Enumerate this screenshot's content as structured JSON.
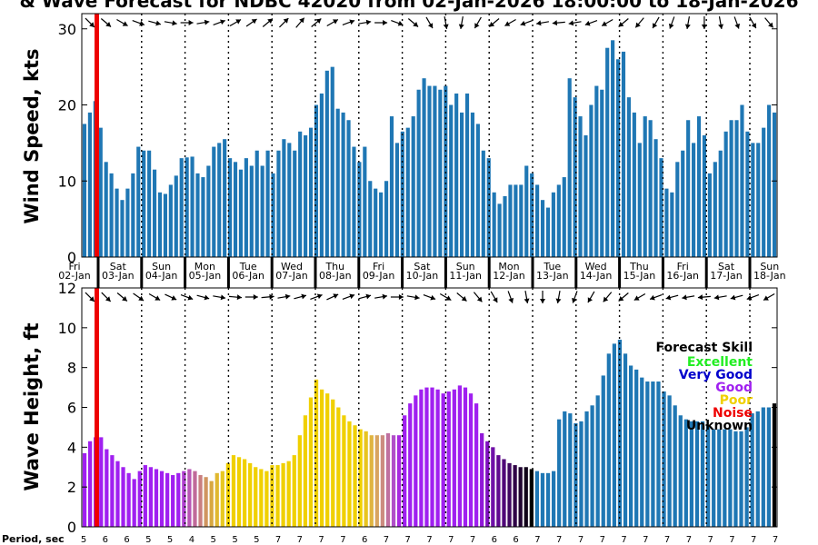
{
  "title": "& Wave Forecast for NDBC 42020 from 02-Jan-2026 18:00:00 to 18-Jan-2026",
  "period_label": "Period, sec",
  "legend": {
    "title": "Forecast Skill",
    "items": [
      {
        "label": "Excellent",
        "color": "#22ee22"
      },
      {
        "label": "Very Good",
        "color": "#0000cc"
      },
      {
        "label": "Good",
        "color": "#a020f0"
      },
      {
        "label": "Poor",
        "color": "#f0d000"
      },
      {
        "label": "Noise",
        "color": "#ee0000"
      },
      {
        "label": "Unknown",
        "color": "#000000"
      }
    ]
  },
  "chart_data": [
    {
      "type": "bar",
      "ylabel": "Wind Speed, kts",
      "ylim": [
        0,
        32
      ],
      "yticks": [
        0,
        10,
        20,
        30
      ],
      "bar_color": "#1f77b4",
      "values": [
        17.5,
        19,
        20.5,
        17,
        12.5,
        11,
        9,
        7.5,
        9,
        11,
        14.5,
        14,
        14,
        11.5,
        8.5,
        8.3,
        9.5,
        10.7,
        13,
        13.1,
        13.2,
        11,
        10.5,
        12,
        14.5,
        15,
        15.5,
        13,
        12.5,
        11.5,
        13,
        12,
        14,
        12,
        14,
        11,
        14,
        15.5,
        15,
        14,
        16.5,
        16,
        17,
        20,
        21.5,
        24.5,
        25,
        19.5,
        19,
        18,
        14.5,
        12.5,
        14.5,
        10,
        9,
        8.5,
        10,
        18.5,
        15,
        16.5,
        17,
        18.5,
        22,
        23.5,
        22.5,
        22.5,
        22,
        22.5,
        20,
        21.5,
        19,
        21.5,
        19,
        17.5,
        14,
        13,
        8.5,
        7,
        8,
        9.5,
        9.5,
        9.5,
        12,
        11,
        9.5,
        7.5,
        6.5,
        8.5,
        9.5,
        10.5,
        23.5,
        21,
        18.5,
        16,
        20,
        22.5,
        22,
        27.5,
        28.5,
        26,
        27,
        21,
        19,
        15,
        18.5,
        18,
        15.5,
        13,
        9,
        8.5,
        12.5,
        14,
        18,
        15,
        18.5,
        16,
        11,
        12.5,
        14,
        16.5,
        18,
        18,
        20,
        16.5,
        15,
        15,
        17,
        20,
        19
      ]
    },
    {
      "type": "bar",
      "ylabel": "Wave Height, ft",
      "ylim": [
        0,
        12
      ],
      "yticks": [
        0,
        2,
        4,
        6,
        8,
        10,
        12
      ],
      "values": [
        3.7,
        4.3,
        4.5,
        4.5,
        3.9,
        3.6,
        3.3,
        3,
        2.7,
        2.4,
        2.8,
        3.1,
        3,
        2.9,
        2.8,
        2.7,
        2.6,
        2.7,
        2.8,
        2.9,
        2.8,
        2.6,
        2.5,
        2.3,
        2.7,
        2.8,
        3.2,
        3.6,
        3.5,
        3.4,
        3.2,
        3,
        2.9,
        2.8,
        3.1,
        3.1,
        3.2,
        3.3,
        3.6,
        4.6,
        5.6,
        6.5,
        7.4,
        6.9,
        6.7,
        6.4,
        6,
        5.6,
        5.3,
        5.1,
        4.9,
        4.8,
        4.6,
        4.6,
        4.6,
        4.7,
        4.6,
        4.6,
        5.6,
        6.2,
        6.6,
        6.9,
        7,
        7,
        6.9,
        6.7,
        6.8,
        6.9,
        7.1,
        7,
        6.7,
        6.2,
        4.7,
        4.3,
        4,
        3.6,
        3.4,
        3.2,
        3.1,
        3,
        3,
        2.9,
        2.8,
        2.7,
        2.7,
        2.8,
        5.4,
        5.8,
        5.7,
        5.2,
        5.3,
        5.8,
        6.1,
        6.6,
        7.6,
        8.7,
        9.2,
        9.4,
        8.7,
        8.1,
        7.9,
        7.5,
        7.3,
        7.3,
        7.3,
        6.8,
        6.6,
        6.1,
        5.6,
        5.4,
        5.3,
        5.3,
        5.3,
        5.1,
        4.9,
        4.9,
        4.9,
        4.9,
        4.8,
        4.8,
        5,
        5.7,
        5.8,
        6,
        6,
        6.2
      ],
      "colors": [
        "#a020f0",
        "#a020f0",
        "#a020f0",
        "#a020f0",
        "#a020f0",
        "#a020f0",
        "#a020f0",
        "#a020f0",
        "#a020f0",
        "#a020f0",
        "#a020f0",
        "#a020f0",
        "#a020f0",
        "#a020f0",
        "#a020f0",
        "#a020f0",
        "#a020f0",
        "#a020f0",
        "#b040d0",
        "#b855b5",
        "#c06a9a",
        "#c97f80",
        "#d09560",
        "#d8a840",
        "#e0b830",
        "#e8c820",
        "#f0d000",
        "#f0d000",
        "#f0d000",
        "#f0d000",
        "#f0d000",
        "#f0d000",
        "#f0d000",
        "#f0d000",
        "#f0d000",
        "#f0d000",
        "#f0d000",
        "#f0d000",
        "#f0d000",
        "#f0d000",
        "#f0d000",
        "#f0d000",
        "#f0d000",
        "#f0d000",
        "#f0d000",
        "#f0d000",
        "#f0d000",
        "#f0d000",
        "#f0d000",
        "#f0d000",
        "#f0d000",
        "#e8c420",
        "#e0b440",
        "#d8a460",
        "#cc8c80",
        "#c070a0",
        "#b050c8",
        "#a828e0",
        "#a020f0",
        "#a020f0",
        "#a020f0",
        "#a020f0",
        "#a020f0",
        "#a020f0",
        "#a020f0",
        "#a020f0",
        "#a020f0",
        "#a020f0",
        "#a020f0",
        "#a020f0",
        "#a020f0",
        "#a020f0",
        "#9018d8",
        "#8010c0",
        "#7010a8",
        "#600890",
        "#500878",
        "#400660",
        "#300448",
        "#200230",
        "#100118",
        "#000000",
        "#1f77b4",
        "#1f77b4",
        "#1f77b4",
        "#1f77b4",
        "#1f77b4",
        "#1f77b4",
        "#1f77b4",
        "#1f77b4",
        "#1f77b4",
        "#1f77b4",
        "#1f77b4",
        "#1f77b4",
        "#1f77b4",
        "#1f77b4",
        "#1f77b4",
        "#1f77b4",
        "#1f77b4",
        "#1f77b4",
        "#1f77b4",
        "#1f77b4",
        "#1f77b4",
        "#1f77b4",
        "#1f77b4",
        "#1f77b4",
        "#1f77b4",
        "#1f77b4",
        "#1f77b4",
        "#1f77b4",
        "#1f77b4",
        "#1f77b4",
        "#1f77b4",
        "#1f77b4",
        "#1f77b4",
        "#1f77b4",
        "#1f77b4",
        "#1f77b4",
        "#1f77b4",
        "#1f77b4",
        "#1f77b4",
        "#1f77b4",
        "#1f77b4",
        "#1f77b4",
        "#1f77b4"
      ]
    }
  ],
  "days": [
    {
      "dow": "Fri",
      "date": "02-Jan"
    },
    {
      "dow": "Sat",
      "date": "03-Jan"
    },
    {
      "dow": "Sun",
      "date": "04-Jan"
    },
    {
      "dow": "Mon",
      "date": "05-Jan"
    },
    {
      "dow": "Tue",
      "date": "06-Jan"
    },
    {
      "dow": "Wed",
      "date": "07-Jan"
    },
    {
      "dow": "Thu",
      "date": "08-Jan"
    },
    {
      "dow": "Fri",
      "date": "09-Jan"
    },
    {
      "dow": "Sat",
      "date": "10-Jan"
    },
    {
      "dow": "Sun",
      "date": "11-Jan"
    },
    {
      "dow": "Mon",
      "date": "12-Jan"
    },
    {
      "dow": "Tue",
      "date": "13-Jan"
    },
    {
      "dow": "Wed",
      "date": "14-Jan"
    },
    {
      "dow": "Thu",
      "date": "15-Jan"
    },
    {
      "dow": "Fri",
      "date": "16-Jan"
    },
    {
      "dow": "Sat",
      "date": "17-Jan"
    },
    {
      "dow": "Sun",
      "date": "18-Jan"
    }
  ],
  "periods": [
    "5",
    "6",
    "6",
    "5",
    "5",
    "4",
    "5",
    "5",
    "5",
    "7",
    "7",
    "7",
    "7",
    "6",
    "7",
    "7",
    "7",
    "7",
    "7",
    "6",
    "6",
    "7",
    "7",
    "7",
    "7",
    "7",
    "7",
    "7",
    "7",
    "7",
    "7",
    "7",
    "7"
  ],
  "wind_arrow_angles": [
    45,
    40,
    30,
    20,
    15,
    10,
    0,
    -10,
    -20,
    -30,
    -35,
    -40,
    -45,
    -50,
    -40,
    -30,
    -20,
    -10,
    0,
    20,
    40,
    60,
    80,
    100,
    120,
    140,
    150,
    160,
    170,
    175,
    170,
    160,
    150,
    140,
    130,
    120,
    110,
    100,
    90,
    80,
    70,
    60,
    50
  ],
  "wave_arrow_angles": [
    45,
    45,
    40,
    35,
    30,
    25,
    20,
    15,
    10,
    5,
    0,
    -5,
    -10,
    -15,
    -20,
    -25,
    -20,
    -15,
    -10,
    0,
    10,
    20,
    30,
    40,
    50,
    60,
    70,
    80,
    90,
    100,
    110,
    120,
    130,
    140,
    150,
    160,
    165,
    170,
    175,
    170,
    165,
    160,
    150
  ]
}
